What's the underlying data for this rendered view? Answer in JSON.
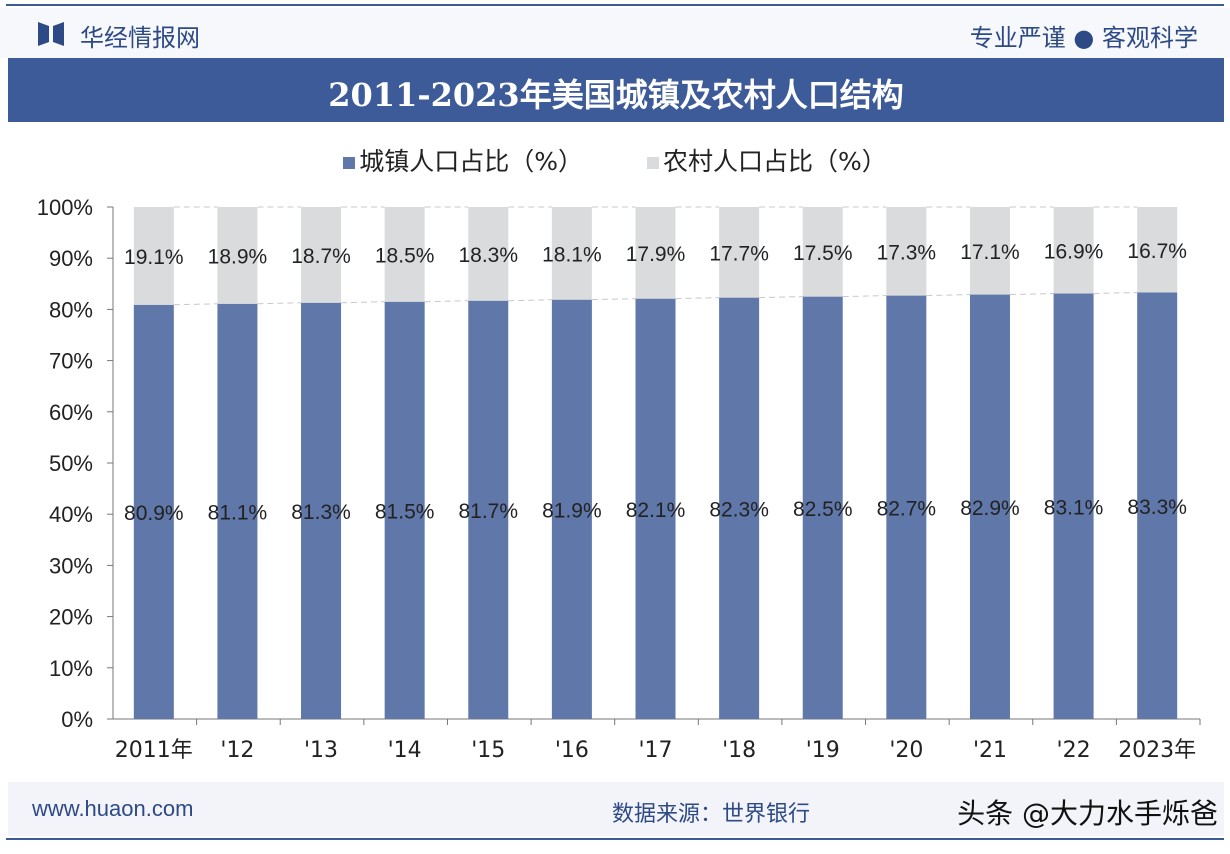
{
  "header": {
    "brand": "华经情报网",
    "slogan": "专业严谨 ● 客观科学",
    "logo": "huajing-logo"
  },
  "footer": {
    "url": "www.huaon.com",
    "source": "数据来源：世界银行",
    "watermark": "头条 @大力水手烁爸"
  },
  "colors": {
    "urban": "#5f77a9",
    "rural": "#dadbdd",
    "brand": "#3d5a99"
  },
  "chart_data": {
    "type": "bar",
    "stacked": true,
    "title": "2011-2023年美国城镇及农村人口结构",
    "categories": [
      "2011年",
      "'12",
      "'13",
      "'14",
      "'15",
      "'16",
      "'17",
      "'18",
      "'19",
      "'20",
      "'21",
      "'22",
      "2023年"
    ],
    "series": [
      {
        "name": "城镇人口占比（%）",
        "values": [
          80.9,
          81.1,
          81.3,
          81.5,
          81.7,
          81.9,
          82.1,
          82.3,
          82.5,
          82.7,
          82.9,
          83.1,
          83.3
        ]
      },
      {
        "name": "农村人口占比（%）",
        "values": [
          19.1,
          18.9,
          18.7,
          18.5,
          18.3,
          18.1,
          17.9,
          17.7,
          17.5,
          17.3,
          17.1,
          16.9,
          16.7
        ]
      }
    ],
    "ylim": [
      0,
      100
    ],
    "yticks": [
      "0%",
      "10%",
      "20%",
      "30%",
      "40%",
      "50%",
      "60%",
      "70%",
      "80%",
      "90%",
      "100%"
    ],
    "legend": "top",
    "grid": false
  }
}
